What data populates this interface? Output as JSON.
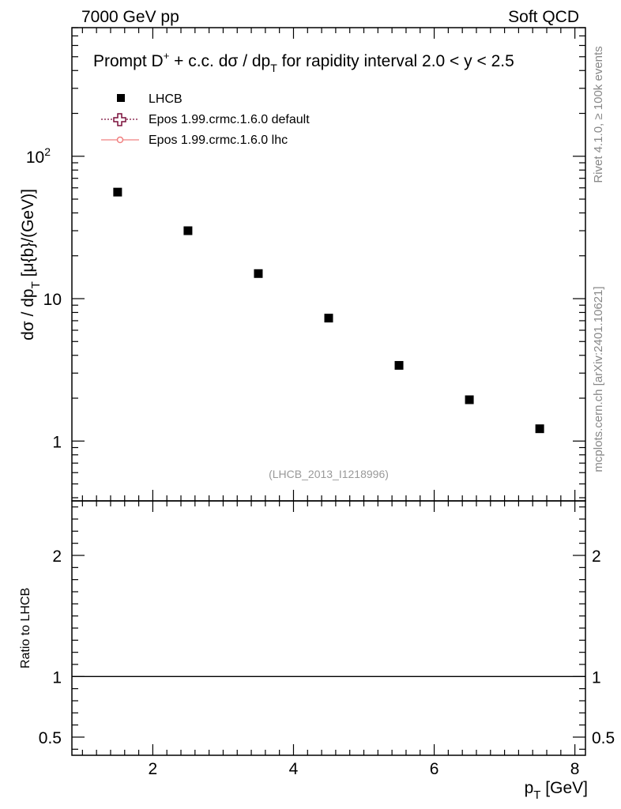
{
  "header": {
    "energy": "7000 GeV pp",
    "category": "Soft QCD"
  },
  "side_text": {
    "rivet": "Rivet 4.1.0, ≥ 100k events",
    "mcplots": "mcplots.cern.ch [arXiv:2401.10621]"
  },
  "chart_data": {
    "type": "scatter",
    "title_parts": {
      "prefix": "Prompt D",
      "sup": "+",
      "middle": " + c.c.  dσ / dp",
      "sub": "T",
      "suffix": " for rapidity interval 2.0 < y < 2.5"
    },
    "ylabel_main": {
      "base": "dσ / dp",
      "sub": "T",
      "rest": " [μ{b}/(GeV)]"
    },
    "ylabel_ratio": "Ratio to LHCB",
    "xlabel": {
      "base": "p",
      "sub": "T",
      "rest": " [GeV]"
    },
    "watermark": "(LHCB_2013_I1218996)",
    "xlim": [
      0.85,
      8.15
    ],
    "ylim_main": [
      0.38,
      800
    ],
    "ylim_ratio": [
      0.35,
      2.45
    ],
    "x_ticks": [
      2,
      4,
      6,
      8
    ],
    "y_ticks_main": [
      {
        "value": 1,
        "base": "1",
        "exp": ""
      },
      {
        "value": 10,
        "base": "10",
        "exp": ""
      },
      {
        "value": 100,
        "base": "10",
        "exp": "2"
      }
    ],
    "y_ticks_ratio": [
      {
        "value": 0.5,
        "label": "0.5"
      },
      {
        "value": 1,
        "label": "1"
      },
      {
        "value": 2,
        "label": "2"
      }
    ],
    "legend": [
      {
        "label": "LHCB",
        "color": "#000000",
        "marker": "square"
      },
      {
        "label": "Epos 1.99.crmc.1.6.0 default",
        "color": "#7a0f3a",
        "marker": "cross-open"
      },
      {
        "label": "Epos 1.99.crmc.1.6.0 lhc",
        "color": "#f08080",
        "marker": "circle-line"
      }
    ],
    "series": [
      {
        "name": "LHCB",
        "x": [
          1.5,
          2.5,
          3.5,
          4.5,
          5.5,
          6.5,
          7.5
        ],
        "y": [
          56,
          30,
          15,
          7.3,
          3.4,
          1.95,
          1.22
        ]
      }
    ],
    "ratio_reference": 1
  }
}
